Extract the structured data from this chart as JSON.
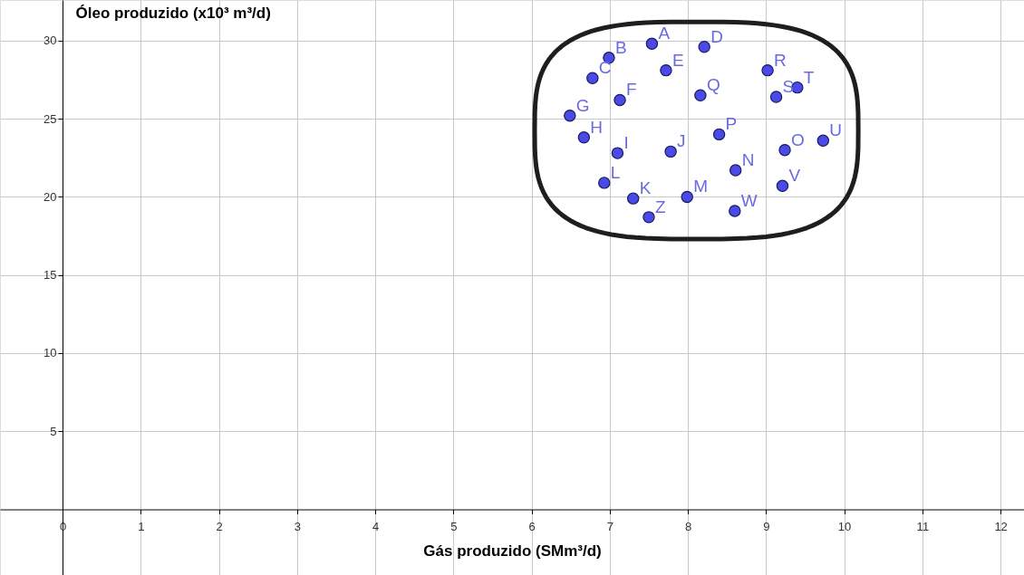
{
  "chart_data": {
    "type": "scatter",
    "xlabel": "Gás produzido (SMm³/d)",
    "ylabel": "Óleo produzido (x10³ m³/d)",
    "x": [
      7.54,
      6.99,
      6.78,
      8.21,
      7.72,
      7.13,
      6.49,
      6.67,
      7.1,
      7.78,
      7.3,
      6.93,
      7.99,
      8.61,
      9.24,
      8.4,
      8.16,
      9.02,
      9.13,
      9.4,
      9.73,
      9.21,
      8.6,
      7.5
    ],
    "series": [
      {
        "color": "#4a4ae6",
        "values": [
          29.8,
          28.9,
          27.6,
          29.6,
          28.1,
          26.2,
          25.2,
          23.8,
          22.8,
          22.9,
          19.9,
          20.9,
          20.0,
          21.7,
          23.0,
          24.0,
          26.5,
          28.1,
          26.4,
          27.0,
          23.6,
          20.7,
          19.1,
          18.7
        ]
      }
    ],
    "annotations": [
      {
        "text": "A",
        "x": 7.54,
        "y": 29.8
      },
      {
        "text": "B",
        "x": 6.99,
        "y": 28.9
      },
      {
        "text": "C",
        "x": 6.78,
        "y": 27.6
      },
      {
        "text": "D",
        "x": 8.21,
        "y": 29.6
      },
      {
        "text": "E",
        "x": 7.72,
        "y": 28.1
      },
      {
        "text": "F",
        "x": 7.13,
        "y": 26.2
      },
      {
        "text": "G",
        "x": 6.49,
        "y": 25.2
      },
      {
        "text": "H",
        "x": 6.67,
        "y": 23.8
      },
      {
        "text": "I",
        "x": 7.1,
        "y": 22.8
      },
      {
        "text": "J",
        "x": 7.78,
        "y": 22.9
      },
      {
        "text": "K",
        "x": 7.3,
        "y": 19.9
      },
      {
        "text": "L",
        "x": 6.93,
        "y": 20.9
      },
      {
        "text": "M",
        "x": 7.99,
        "y": 20.0
      },
      {
        "text": "N",
        "x": 8.61,
        "y": 21.7
      },
      {
        "text": "O",
        "x": 9.24,
        "y": 23.0
      },
      {
        "text": "P",
        "x": 8.4,
        "y": 24.0
      },
      {
        "text": "Q",
        "x": 8.16,
        "y": 26.5
      },
      {
        "text": "R",
        "x": 9.02,
        "y": 28.1
      },
      {
        "text": "S",
        "x": 9.13,
        "y": 26.4
      },
      {
        "text": "T",
        "x": 9.4,
        "y": 27.0
      },
      {
        "text": "U",
        "x": 9.73,
        "y": 23.6
      },
      {
        "text": "V",
        "x": 9.21,
        "y": 20.7
      },
      {
        "text": "W",
        "x": 8.6,
        "y": 19.1
      },
      {
        "text": "Z",
        "x": 7.5,
        "y": 18.7
      }
    ],
    "xlim": [
      -0.8,
      12.3
    ],
    "ylim": [
      -4.2,
      32.6
    ],
    "xticks": [
      0,
      1,
      2,
      3,
      4,
      5,
      6,
      7,
      8,
      9,
      10,
      11,
      12
    ],
    "yticks": [
      5,
      10,
      15,
      20,
      25,
      30
    ],
    "grid": true,
    "marker": "circle"
  }
}
